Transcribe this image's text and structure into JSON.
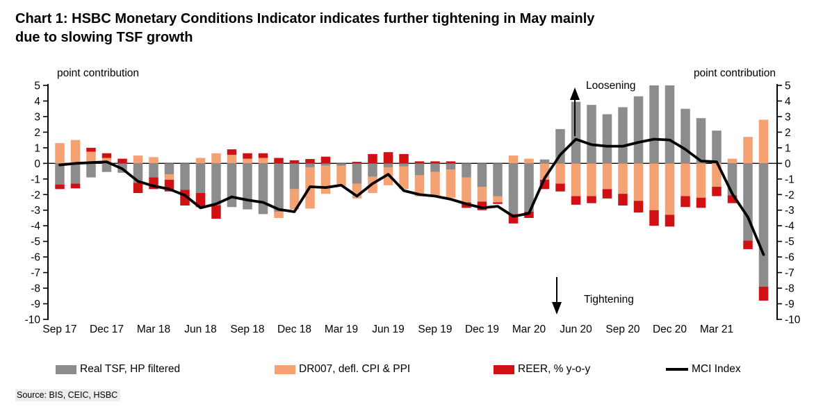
{
  "title": "Chart 1: HSBC Monetary Conditions Indicator indicates further tightening in May mainly\ndue to slowing TSF growth",
  "source": "Source: BIS, CEIC, HSBC",
  "annotations": {
    "left_axis_note": "point contribution",
    "right_axis_note": "point contribution",
    "loosening": "Loosening",
    "tightening": "Tightening"
  },
  "chart_data": {
    "type": "bar",
    "subtype": "stacked-bars-with-line-overlay",
    "title": "Chart 1: HSBC Monetary Conditions Indicator indicates further tightening in May mainly due to slowing TSF growth",
    "ylabel": "point contribution",
    "ylim": [
      -10,
      5
    ],
    "yticks": [
      5,
      4,
      3,
      2,
      1,
      0,
      -1,
      -2,
      -3,
      -4,
      -5,
      -6,
      -7,
      -8,
      -9,
      -10
    ],
    "grid": false,
    "legend_position": "bottom",
    "x_labels": [
      "Sep 17",
      "Dec 17",
      "Mar 18",
      "Jun 18",
      "Sep 18",
      "Dec 18",
      "Mar 19",
      "Jun 19",
      "Sep 19",
      "Dec 19",
      "Mar 20",
      "Jun 20",
      "Sep 20",
      "Dec 20",
      "Mar 21"
    ],
    "months": [
      "Sep-17",
      "Oct-17",
      "Nov-17",
      "Dec-17",
      "Jan-18",
      "Feb-18",
      "Mar-18",
      "Apr-18",
      "May-18",
      "Jun-18",
      "Jul-18",
      "Aug-18",
      "Sep-18",
      "Oct-18",
      "Nov-18",
      "Dec-18",
      "Jan-19",
      "Feb-19",
      "Mar-19",
      "Apr-19",
      "May-19",
      "Jun-19",
      "Jul-19",
      "Aug-19",
      "Sep-19",
      "Oct-19",
      "Nov-19",
      "Dec-19",
      "Jan-20",
      "Feb-20",
      "Mar-20",
      "Apr-20",
      "May-20",
      "Jun-20",
      "Jul-20",
      "Aug-20",
      "Sep-20",
      "Oct-20",
      "Nov-20",
      "Dec-20",
      "Jan-21",
      "Feb-21",
      "Mar-21",
      "Apr-21",
      "May-21",
      "Jun-21"
    ],
    "series": [
      {
        "name": "Real TSF, HP filtered",
        "color": "#8c8c8c",
        "values": [
          -1.35,
          -1.3,
          -0.9,
          -0.55,
          -0.6,
          -1.25,
          -0.9,
          -0.7,
          -1.7,
          -1.9,
          -2.7,
          -2.8,
          -2.95,
          -3.25,
          -3.1,
          -1.65,
          -0.25,
          -0.15,
          -0.15,
          -1.3,
          -0.85,
          -0.25,
          -0.2,
          -0.76,
          -0.55,
          -0.4,
          -0.9,
          -1.5,
          -2.1,
          -3.25,
          -3.1,
          0.25,
          2.2,
          3.95,
          3.75,
          3.15,
          3.6,
          4.3,
          5.0,
          5.0,
          3.5,
          2.9,
          2.1,
          -2.05,
          -4.95,
          -7.9
        ]
      },
      {
        "name": "DR007, defl. CPI & PPI",
        "color": "#f4a173",
        "values": [
          1.3,
          1.5,
          0.75,
          0.35,
          0.0,
          0.5,
          0.4,
          -0.35,
          0.0,
          0.35,
          0.65,
          0.55,
          0.3,
          0.35,
          -0.4,
          -1.3,
          -2.65,
          -1.8,
          -1.3,
          -0.95,
          -1.05,
          -1.15,
          -1.45,
          -1.35,
          -1.55,
          -1.8,
          -1.6,
          -0.95,
          -0.4,
          0.5,
          0.3,
          -1.05,
          -1.3,
          -2.1,
          -2.1,
          -1.65,
          -1.95,
          -2.4,
          -3.0,
          -3.3,
          -2.1,
          -2.2,
          -1.5,
          0.3,
          1.7,
          2.8
        ]
      },
      {
        "name": "REER, % y-o-y",
        "color": "#d01015",
        "values": [
          -0.3,
          -0.3,
          0.25,
          0.3,
          0.3,
          -0.65,
          -0.75,
          -0.75,
          -1.0,
          -0.9,
          -0.85,
          0.35,
          0.35,
          0.3,
          0.35,
          0.2,
          0.28,
          0.43,
          0.0,
          0.1,
          0.6,
          0.72,
          0.6,
          0.13,
          0.13,
          0.13,
          -0.35,
          -0.55,
          -0.1,
          -0.6,
          -0.4,
          -0.6,
          -0.5,
          -0.55,
          -0.45,
          -0.6,
          -0.75,
          -0.75,
          -1.0,
          -0.75,
          -0.7,
          -0.65,
          -0.6,
          -0.5,
          -0.55,
          -0.9
        ]
      }
    ],
    "line": {
      "name": "MCI Index",
      "color": "#000000",
      "values": [
        -0.1,
        0.0,
        0.05,
        0.1,
        -0.35,
        -1.15,
        -1.45,
        -1.65,
        -2.05,
        -2.85,
        -2.6,
        -2.15,
        -2.35,
        -2.5,
        -2.95,
        -3.1,
        -1.5,
        -1.55,
        -1.4,
        -2.1,
        -1.3,
        -0.7,
        -1.75,
        -2.0,
        -2.1,
        -2.3,
        -2.6,
        -2.85,
        -2.75,
        -3.4,
        -3.2,
        -0.95,
        0.55,
        1.55,
        1.2,
        1.1,
        1.1,
        1.35,
        1.55,
        1.5,
        0.9,
        0.15,
        0.1,
        -1.95,
        -3.45,
        -5.85
      ]
    }
  },
  "legend": {
    "items": [
      {
        "label": "Real TSF, HP filtered"
      },
      {
        "label": "DR007, defl. CPI & PPI"
      },
      {
        "label": "REER, % y-o-y"
      },
      {
        "label": "MCI Index"
      }
    ]
  }
}
